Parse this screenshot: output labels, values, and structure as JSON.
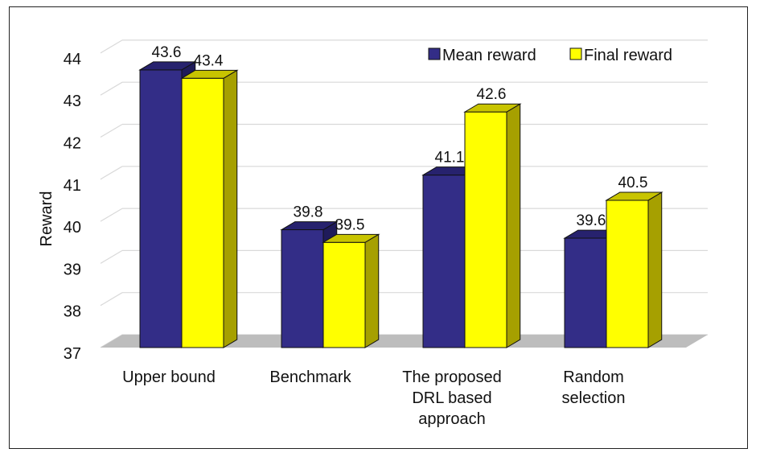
{
  "chart_data": {
    "type": "bar",
    "title": "",
    "xlabel": "",
    "ylabel": "Reward",
    "ylim": [
      37,
      44
    ],
    "yticks": [
      "37",
      "38",
      "39",
      "40",
      "41",
      "42",
      "43",
      "44"
    ],
    "grid": true,
    "legend_position": "top-right",
    "categories": [
      [
        "Upper bound"
      ],
      [
        "Benchmark"
      ],
      [
        "The proposed",
        "DRL based",
        "approach"
      ],
      [
        "Random",
        "selection"
      ]
    ],
    "series": [
      {
        "name": "Mean reward",
        "color": "#332d87",
        "side_color": "#1f1b5a",
        "top_color": "#27226e",
        "values": [
          43.6,
          39.8,
          41.1,
          39.6
        ],
        "labels": [
          "43.6",
          "39.8",
          "41.1",
          "39.6"
        ]
      },
      {
        "name": "Final reward",
        "color": "#ffff00",
        "side_color": "#a6a000",
        "top_color": "#c8c400",
        "values": [
          43.4,
          39.5,
          42.6,
          40.5
        ],
        "labels": [
          "43.4",
          "39.5",
          "42.6",
          "40.5"
        ]
      }
    ]
  }
}
